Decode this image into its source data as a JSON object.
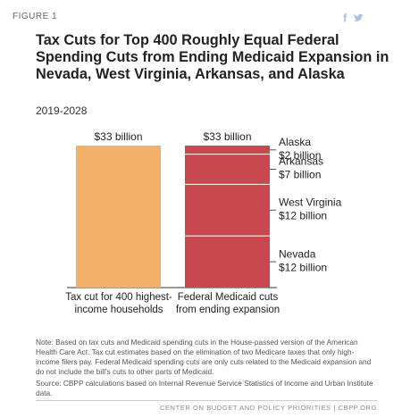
{
  "header": {
    "figure": "FIGURE 1"
  },
  "chart_data": {
    "type": "bar",
    "title": "Tax Cuts for Top 400 Roughly Equal Federal Spending Cuts from Ending Medicaid Expansion in Nevada, West Virginia, Arkansas, and Alaska",
    "subtitle": "2019-2028",
    "bars": [
      {
        "label": "Tax cut for 400 highest-income households",
        "value": 33,
        "value_label": "$33 billion",
        "color": "#f2b06a"
      },
      {
        "label": "Federal Medicaid cuts from ending expansion",
        "value": 33,
        "value_label": "$33 billion",
        "color": "#c9474f",
        "segments": [
          {
            "name": "Nevada",
            "value": 12,
            "value_label": "$12 billion"
          },
          {
            "name": "West Virginia",
            "value": 12,
            "value_label": "$12 billion"
          },
          {
            "name": "Arkansas",
            "value": 7,
            "value_label": "$7 billion"
          },
          {
            "name": "Alaska",
            "value": 2,
            "value_label": "$2 billion"
          }
        ]
      }
    ]
  },
  "notes": {
    "note": "Note: Based on tax cuts and Medicaid spending cuts in the House-passed version of the American Health Care Act.  Tax cut estimates based on the elimination of two Medicare taxes that only high-income filers pay.  Federal Medicaid spending cuts are only cuts related to the Medicaid expansion and do not include the bill's cuts to other parts of Medicaid.",
    "source": "Source: CBPP calculations based on Internal Revenue Service Statistics of Income and Urban Institute data."
  },
  "footer": "CENTER ON BUDGET AND POLICY PRIORITIES | CBPP.ORG"
}
